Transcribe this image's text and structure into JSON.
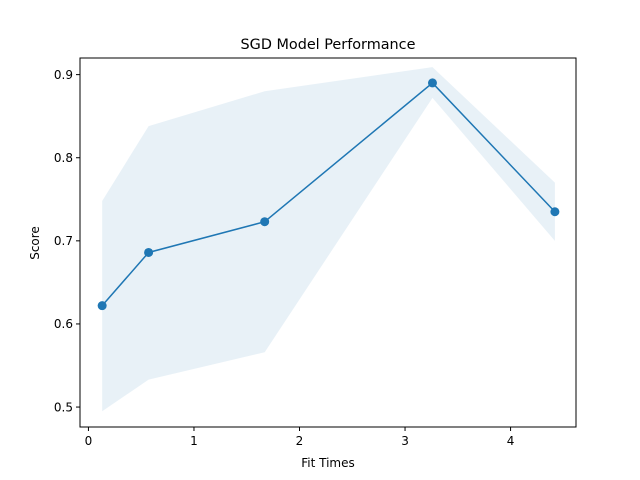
{
  "chart_data": {
    "type": "line",
    "title": "SGD Model Performance",
    "xlabel": "Fit Times",
    "ylabel": "Score",
    "xlim": [
      -0.08,
      4.62
    ],
    "ylim": [
      0.476,
      0.92
    ],
    "xticks": [
      0,
      1,
      2,
      3,
      4
    ],
    "yticks": [
      0.5,
      0.6,
      0.7,
      0.8,
      0.9
    ],
    "grid": false,
    "series": [
      {
        "x": [
          0.13,
          0.57,
          1.67,
          3.26,
          4.42
        ],
        "y": [
          0.622,
          0.686,
          0.723,
          0.89,
          0.735
        ],
        "band_lower": [
          0.495,
          0.533,
          0.566,
          0.872,
          0.7
        ],
        "band_upper": [
          0.748,
          0.838,
          0.88,
          0.909,
          0.77
        ],
        "color": "#1f77b4",
        "band_color": "#1f77b4",
        "band_alpha": 0.1,
        "marker": "circle"
      }
    ]
  }
}
